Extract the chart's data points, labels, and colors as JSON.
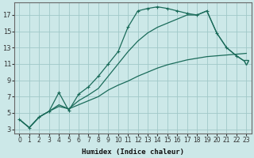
{
  "xlabel": "Humidex (Indice chaleur)",
  "bg_color": "#cce8e8",
  "grid_color": "#a0c8c8",
  "line_color": "#1a6b5a",
  "xlim": [
    -0.5,
    23.5
  ],
  "ylim": [
    2.5,
    18.5
  ],
  "xticks": [
    0,
    1,
    2,
    3,
    4,
    5,
    6,
    7,
    8,
    9,
    10,
    11,
    12,
    13,
    14,
    15,
    16,
    17,
    18,
    19,
    20,
    21,
    22,
    23
  ],
  "yticks": [
    3,
    5,
    7,
    9,
    11,
    13,
    15,
    17
  ],
  "curve_top_x": [
    0,
    1,
    2,
    3,
    4,
    5,
    6,
    7,
    8,
    9,
    10,
    11,
    12,
    13,
    14,
    15,
    16,
    17,
    18,
    19,
    20,
    21,
    22,
    23
  ],
  "curve_top_y": [
    4.2,
    3.2,
    4.5,
    5.2,
    7.5,
    5.3,
    7.3,
    8.2,
    9.5,
    11.0,
    12.5,
    15.5,
    17.5,
    17.8,
    18.0,
    17.8,
    17.5,
    17.2,
    17.0,
    17.5,
    14.8,
    13.0,
    12.0,
    11.2
  ],
  "curve_mid_x": [
    0,
    1,
    2,
    3,
    4,
    5,
    6,
    7,
    8,
    9,
    10,
    11,
    12,
    13,
    14,
    15,
    16,
    17,
    18,
    19,
    20,
    21,
    22,
    23
  ],
  "curve_mid_y": [
    4.2,
    3.2,
    4.5,
    5.2,
    6.0,
    5.5,
    6.5,
    7.2,
    8.0,
    9.5,
    11.0,
    12.5,
    13.8,
    14.8,
    15.5,
    16.0,
    16.5,
    17.0,
    17.0,
    17.5,
    14.8,
    13.0,
    12.0,
    11.2
  ],
  "curve_bot_x": [
    0,
    1,
    2,
    3,
    4,
    5,
    6,
    7,
    8,
    9,
    10,
    11,
    12,
    13,
    14,
    15,
    16,
    17,
    18,
    19,
    20,
    21,
    22,
    23
  ],
  "curve_bot_y": [
    4.2,
    3.2,
    4.5,
    5.2,
    5.8,
    5.5,
    6.0,
    6.5,
    7.0,
    7.8,
    8.4,
    8.9,
    9.5,
    10.0,
    10.5,
    10.9,
    11.2,
    11.5,
    11.7,
    11.9,
    12.0,
    12.1,
    12.2,
    12.3
  ],
  "triangle_x": 23,
  "triangle_y": 11.2
}
